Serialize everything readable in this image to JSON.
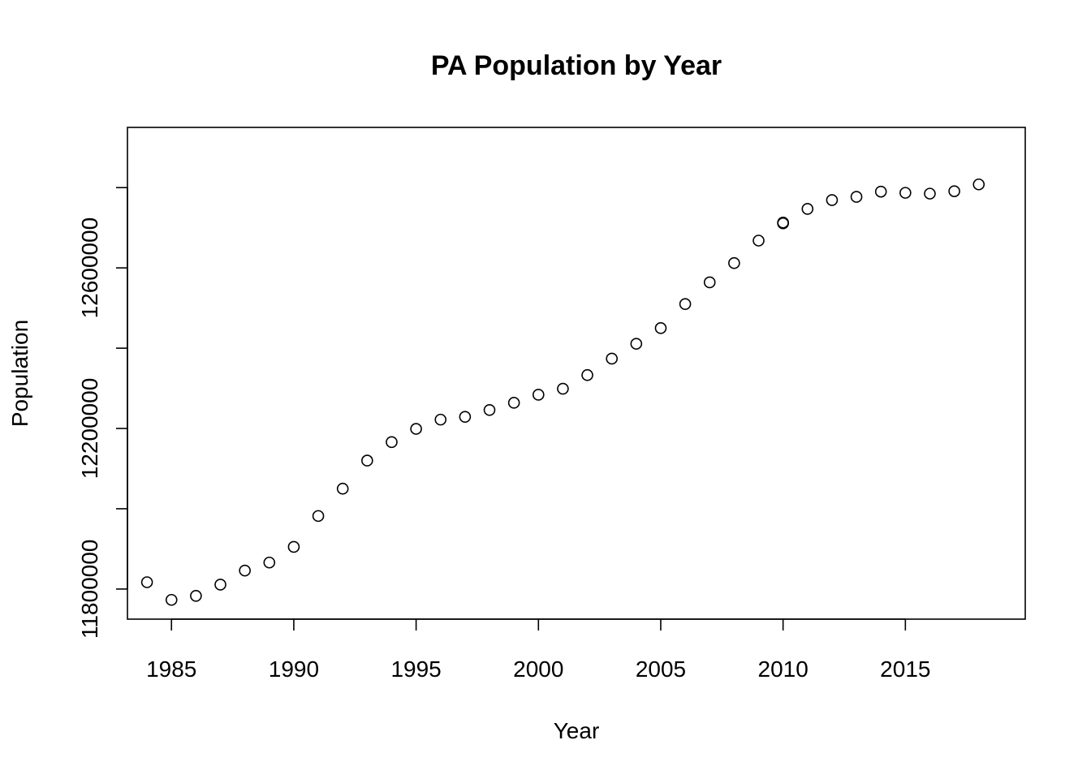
{
  "chart_data": {
    "type": "scatter",
    "title": "PA Population by Year",
    "xlabel": "Year",
    "ylabel": "Population",
    "xlim": [
      1983.2,
      2019.9
    ],
    "ylim": [
      11725000,
      12950000
    ],
    "xticks": [
      1985,
      1990,
      1995,
      2000,
      2005,
      2010,
      2015
    ],
    "yticks": [
      11800000,
      12000000,
      12200000,
      12400000,
      12600000,
      12800000
    ],
    "ytick_labels": [
      "11800000",
      "",
      "12200000",
      "",
      "12600000",
      ""
    ],
    "grid": false,
    "legend": "none",
    "points": [
      {
        "x": 1984,
        "y": 11817000
      },
      {
        "x": 1985,
        "y": 11773000
      },
      {
        "x": 1986,
        "y": 11783000
      },
      {
        "x": 1987,
        "y": 11811000
      },
      {
        "x": 1988,
        "y": 11846000
      },
      {
        "x": 1989,
        "y": 11866000
      },
      {
        "x": 1990,
        "y": 11905000
      },
      {
        "x": 1991,
        "y": 11982000
      },
      {
        "x": 1992,
        "y": 12050000
      },
      {
        "x": 1993,
        "y": 12120000
      },
      {
        "x": 1994,
        "y": 12166000
      },
      {
        "x": 1995,
        "y": 12199000
      },
      {
        "x": 1996,
        "y": 12222000
      },
      {
        "x": 1997,
        "y": 12229000
      },
      {
        "x": 1998,
        "y": 12246000
      },
      {
        "x": 1999,
        "y": 12264000
      },
      {
        "x": 2000,
        "y": 12284000
      },
      {
        "x": 2001,
        "y": 12299000
      },
      {
        "x": 2002,
        "y": 12333000
      },
      {
        "x": 2003,
        "y": 12374000
      },
      {
        "x": 2004,
        "y": 12411000
      },
      {
        "x": 2005,
        "y": 12450000
      },
      {
        "x": 2006,
        "y": 12510000
      },
      {
        "x": 2007,
        "y": 12564000
      },
      {
        "x": 2008,
        "y": 12612000
      },
      {
        "x": 2009,
        "y": 12668000
      },
      {
        "x": 2010,
        "y": 12711000
      },
      {
        "x": 2010,
        "y": 12713000
      },
      {
        "x": 2011,
        "y": 12747000
      },
      {
        "x": 2012,
        "y": 12769000
      },
      {
        "x": 2013,
        "y": 12777000
      },
      {
        "x": 2014,
        "y": 12790000
      },
      {
        "x": 2015,
        "y": 12787000
      },
      {
        "x": 2016,
        "y": 12785000
      },
      {
        "x": 2017,
        "y": 12791000
      },
      {
        "x": 2018,
        "y": 12808000
      }
    ]
  }
}
